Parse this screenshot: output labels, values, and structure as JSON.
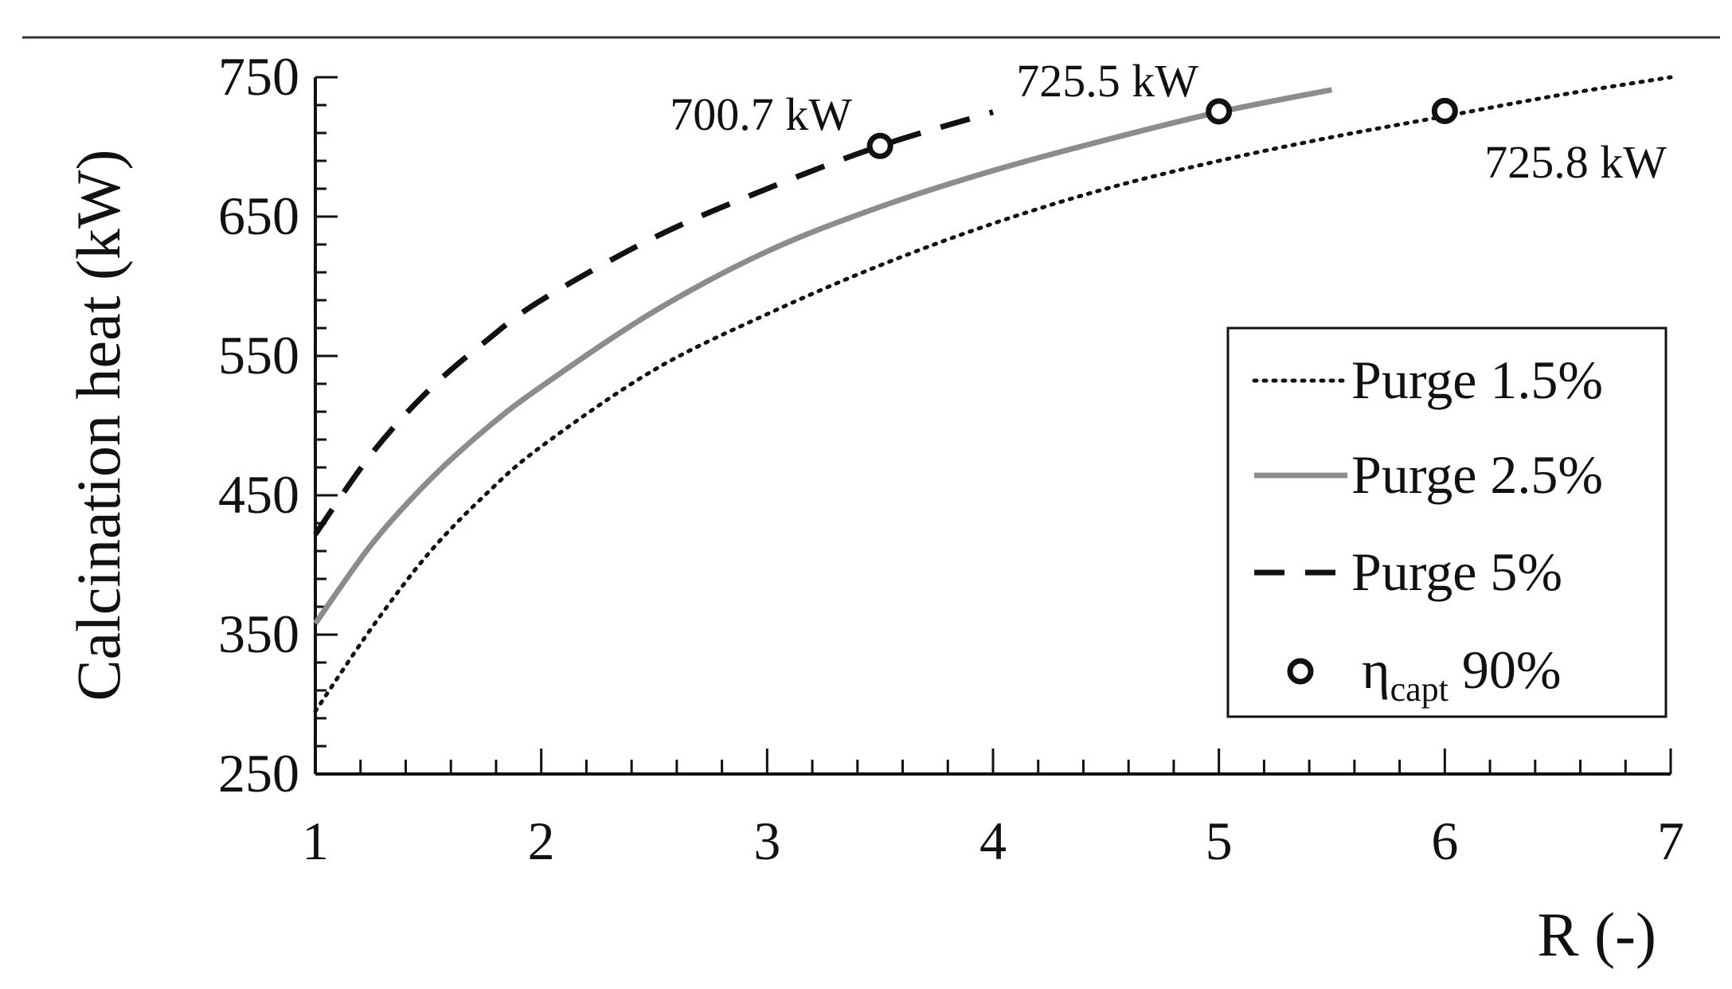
{
  "chart_data": {
    "type": "line",
    "title": "",
    "xlabel": "R (-)",
    "ylabel": "Calcination heat (kW)",
    "xlim": [
      1,
      7
    ],
    "ylim": [
      250,
      750
    ],
    "x_ticks": [
      1,
      2,
      3,
      4,
      5,
      6,
      7
    ],
    "x_tick_labels": [
      "1",
      "2",
      "3",
      "4",
      "5",
      "6",
      "7"
    ],
    "y_ticks": [
      250,
      350,
      450,
      550,
      650,
      750
    ],
    "y_tick_labels": [
      "250",
      "350",
      "450",
      "550",
      "650",
      "750"
    ],
    "grid": false,
    "legend_position": "right",
    "series": [
      {
        "name": "Purge 1.5%",
        "style": "dotted",
        "color": "#111111",
        "x": [
          1.0,
          1.25,
          1.5,
          1.75,
          2.0,
          2.5,
          3.0,
          3.5,
          4.0,
          4.5,
          5.0,
          5.5,
          6.0,
          6.5,
          7.0
        ],
        "y": [
          295,
          355,
          408,
          450,
          485,
          540,
          580,
          615,
          645,
          670,
          690,
          707,
          722,
          737,
          750
        ]
      },
      {
        "name": "Purge 2.5%",
        "style": "solid",
        "color": "#8c8c8c",
        "x": [
          1.0,
          1.25,
          1.5,
          1.75,
          2.0,
          2.5,
          3.0,
          3.5,
          4.0,
          4.5,
          5.0,
          5.5
        ],
        "y": [
          358,
          415,
          460,
          497,
          528,
          582,
          625,
          657,
          683,
          705,
          725,
          741
        ]
      },
      {
        "name": "Purge 5%",
        "style": "dashed",
        "color": "#111111",
        "x": [
          1.0,
          1.25,
          1.5,
          1.75,
          2.0,
          2.5,
          3.0,
          3.5,
          4.0
        ],
        "y": [
          422,
          480,
          525,
          560,
          590,
          635,
          670,
          700.7,
          725
        ]
      },
      {
        "name": "ηcapt 90%",
        "name_main": "η",
        "name_sub": "capt",
        "name_rest": " 90%",
        "style": "marker-circle",
        "color": "#111111",
        "x": [
          3.5,
          5.0,
          6.0
        ],
        "y": [
          700.7,
          725.5,
          725.8
        ]
      }
    ],
    "annotations": [
      {
        "text": "700.7 kW",
        "x": 3.5,
        "y": 700.7
      },
      {
        "text": "725.5 kW",
        "x": 5.0,
        "y": 725.5
      },
      {
        "text": "725.8 kW",
        "x": 6.0,
        "y": 725.8
      }
    ]
  }
}
